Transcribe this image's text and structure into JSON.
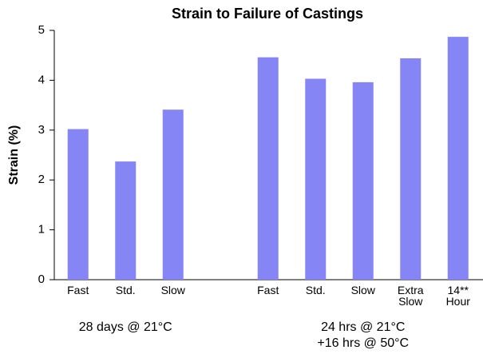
{
  "chart_data": {
    "type": "bar",
    "title": "Strain to Failure of Castings",
    "ylabel": "Strain (%)",
    "categories": [
      "Fast",
      "Std.",
      "Slow",
      null,
      "Fast",
      "Std.",
      "Slow",
      "Extra Slow",
      "14** Hour"
    ],
    "values": [
      3.02,
      2.37,
      3.41,
      null,
      4.46,
      4.03,
      3.96,
      4.44,
      4.87
    ],
    "color": "#8585f5",
    "ylim": [
      0,
      5
    ],
    "yticks": [
      0,
      1,
      2,
      3,
      4,
      5
    ],
    "group_labels": [
      [
        "28 days @ 21°C"
      ],
      [
        "24 hrs @ 21°C",
        "+16 hrs @ 50°C"
      ]
    ]
  }
}
